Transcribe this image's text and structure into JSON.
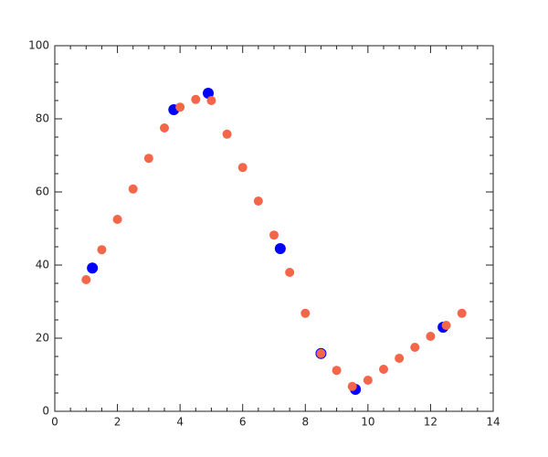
{
  "chart_data": {
    "type": "scatter",
    "xlim": [
      0,
      14
    ],
    "xticks": [
      0,
      2,
      4,
      6,
      8,
      10,
      12,
      14
    ],
    "ylim": [
      0,
      100
    ],
    "yticks": [
      0,
      20,
      40,
      60,
      80,
      100
    ],
    "series": [
      {
        "color": "#0000ff",
        "x": [
          1.2,
          3.8,
          4.9,
          7.2,
          8.5,
          9.6,
          12.4
        ],
        "values": [
          39.2,
          82.5,
          87,
          44.5,
          15.8,
          6,
          23
        ]
      },
      {
        "color": "#f4664a",
        "x": [
          1,
          1.5,
          2,
          2.5,
          3,
          3.5,
          4,
          4.5,
          5,
          5.5,
          6,
          6.5,
          7,
          7.5,
          8,
          8.5,
          9,
          9.5,
          10,
          10.5,
          11,
          11.5,
          12,
          12.5,
          13
        ],
        "values": [
          36,
          44.2,
          52.5,
          60.8,
          69.2,
          77.5,
          83.2,
          85.3,
          85,
          75.8,
          66.7,
          57.5,
          48.2,
          38,
          26.8,
          15.8,
          11.2,
          6.8,
          8.5,
          11.5,
          14.5,
          17.5,
          20.5,
          23.5,
          26.8
        ]
      }
    ]
  }
}
